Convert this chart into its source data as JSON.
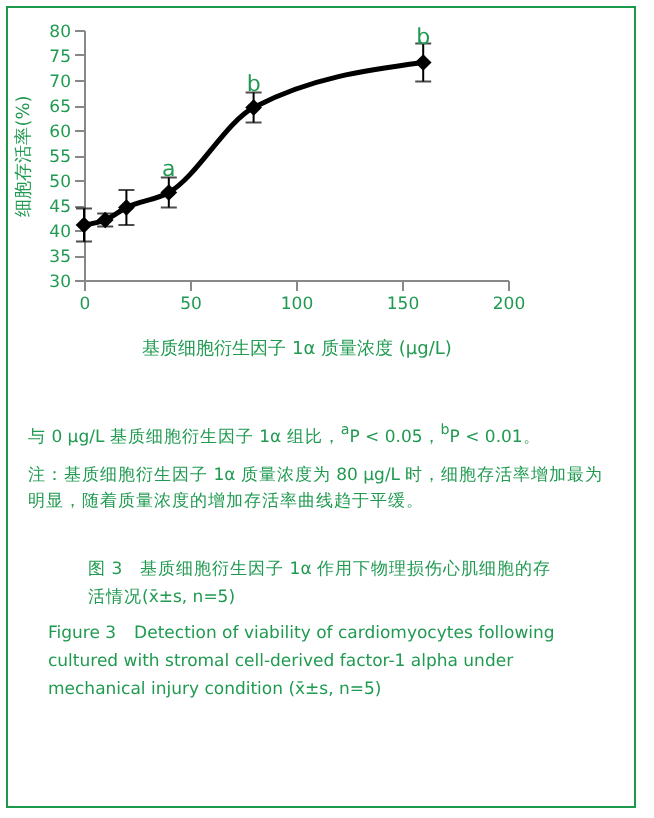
{
  "chart_data": {
    "type": "line",
    "title": "图 3　基质细胞衍生因子 1α 作用下物理损伤心肌细胞的存活情况(x̄±s, n=5)",
    "subtitle": "Figure 3　Detection of viability of cardiomyocytes following cultured with stromal cell-derived factor-1 alpha under mechanical injury condition (x̄±s, n=5)",
    "xlabel": "基质细胞衍生因子 1α 质量浓度 (μg/L)",
    "ylabel": "细胞存活率(%)",
    "x": [
      0,
      10,
      20,
      40,
      80,
      160
    ],
    "series": [
      {
        "color": "#000000",
        "values": [
          41,
          42,
          44.5,
          47.5,
          64.5,
          73.5
        ],
        "errors": [
          3.3,
          1.3,
          3.5,
          3,
          3,
          3.8
        ]
      }
    ],
    "xlim": [
      0,
      200
    ],
    "xticks": [
      0,
      50,
      100,
      150,
      200
    ],
    "ylim": [
      30,
      80
    ],
    "yticks": [
      30,
      35,
      40,
      45,
      50,
      55,
      60,
      65,
      70,
      75,
      80
    ],
    "marker": "diamond",
    "line_style": "solid",
    "grid": false,
    "annotations": [
      {
        "text": "a",
        "x": 40,
        "y": 52
      },
      {
        "text": "b",
        "x": 80,
        "y": 69
      },
      {
        "text": "b",
        "x": 160,
        "y": 78.5
      },
      "与 0 μg/L 基质细胞衍生因子 1α 组比，$^{a}$P < 0.05，$^{b}$P < 0.01。",
      "注：基质细胞衍生因子 1α 质量浓度为 80 μg/L 时，细胞存活率增加最为明显，随着质量浓度的增加存活率曲线趋于平缓。"
    ]
  }
}
